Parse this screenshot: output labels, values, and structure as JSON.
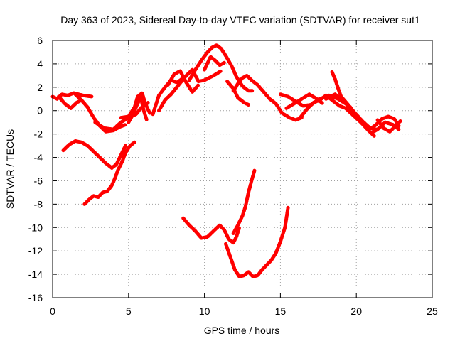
{
  "chart_data": {
    "type": "scatter",
    "title": "Day 363 of 2023, Sidereal Day-to-day VTEC variation (SDTVAR) for receiver sut1",
    "xlabel": "GPS time / hours",
    "ylabel": "SDTVAR / TECUs",
    "xlim": [
      0,
      25
    ],
    "ylim": [
      -16,
      6
    ],
    "xticks": [
      0,
      5,
      10,
      15,
      20,
      25
    ],
    "yticks": [
      -16,
      -14,
      -12,
      -10,
      -8,
      -6,
      -4,
      -2,
      0,
      2,
      4,
      6
    ],
    "grid": true,
    "marker": "+",
    "color": "#ff0000",
    "series": [
      {
        "name": "arc-1",
        "points": [
          [
            0,
            1.2
          ],
          [
            0.3,
            1.0
          ],
          [
            0.6,
            1.4
          ],
          [
            1.0,
            1.3
          ],
          [
            1.4,
            1.5
          ],
          [
            2.0,
            1.3
          ],
          [
            2.6,
            1.2
          ]
        ]
      },
      {
        "name": "arc-2",
        "points": [
          [
            0.4,
            1.2
          ],
          [
            0.8,
            0.6
          ],
          [
            1.2,
            0.2
          ],
          [
            1.6,
            0.7
          ],
          [
            1.9,
            0.9
          ]
        ]
      },
      {
        "name": "arc-3",
        "points": [
          [
            1.5,
            1.4
          ],
          [
            1.9,
            0.9
          ],
          [
            2.3,
            0.3
          ],
          [
            2.7,
            -0.6
          ],
          [
            3.1,
            -1.3
          ],
          [
            3.5,
            -1.8
          ],
          [
            4.0,
            -1.7
          ],
          [
            4.4,
            -1.4
          ],
          [
            4.8,
            -1.2
          ]
        ]
      },
      {
        "name": "arc-4",
        "points": [
          [
            2.8,
            -1.0
          ],
          [
            3.4,
            -1.5
          ],
          [
            4.0,
            -1.6
          ],
          [
            4.5,
            -1.0
          ],
          [
            5.0,
            -0.6
          ],
          [
            5.5,
            -0.3
          ],
          [
            5.8,
            0.2
          ],
          [
            6.3,
            0.7
          ]
        ]
      },
      {
        "name": "arc-5",
        "points": [
          [
            4.5,
            -0.6
          ],
          [
            5.0,
            -0.5
          ],
          [
            5.4,
            0.3
          ],
          [
            5.6,
            1.2
          ],
          [
            5.9,
            1.5
          ],
          [
            6.1,
            0.6
          ],
          [
            6.4,
            -0.2
          ]
        ]
      },
      {
        "name": "arc-6",
        "points": [
          [
            5.0,
            -1.0
          ],
          [
            5.3,
            -0.3
          ],
          [
            5.6,
            0.6
          ],
          [
            5.8,
            1.2
          ],
          [
            6.0,
            0.0
          ],
          [
            6.2,
            -0.8
          ]
        ]
      },
      {
        "name": "arc-7",
        "points": [
          [
            6.6,
            -0.3
          ],
          [
            7.0,
            1.3
          ],
          [
            7.4,
            2.0
          ],
          [
            7.8,
            2.6
          ],
          [
            8.2,
            2.4
          ],
          [
            8.6,
            2.8
          ]
        ]
      },
      {
        "name": "arc-8",
        "points": [
          [
            7.0,
            0.0
          ],
          [
            7.4,
            0.9
          ],
          [
            7.8,
            1.4
          ],
          [
            8.3,
            2.2
          ],
          [
            8.8,
            3.0
          ],
          [
            9.2,
            3.5
          ],
          [
            9.6,
            2.5
          ],
          [
            10.0,
            2.6
          ],
          [
            10.6,
            3.0
          ],
          [
            11.1,
            3.4
          ]
        ]
      },
      {
        "name": "arc-9",
        "points": [
          [
            7.6,
            2.2
          ],
          [
            8.0,
            3.1
          ],
          [
            8.4,
            3.4
          ],
          [
            8.8,
            2.4
          ],
          [
            9.2,
            1.6
          ],
          [
            9.6,
            2.2
          ]
        ]
      },
      {
        "name": "arc-10",
        "points": [
          [
            9.0,
            2.6
          ],
          [
            9.4,
            3.5
          ],
          [
            9.8,
            4.3
          ],
          [
            10.2,
            5.0
          ],
          [
            10.5,
            5.4
          ],
          [
            10.8,
            5.6
          ],
          [
            11.1,
            5.3
          ],
          [
            11.4,
            4.7
          ],
          [
            11.8,
            3.8
          ],
          [
            12.1,
            2.9
          ],
          [
            12.5,
            2.1
          ],
          [
            12.9,
            1.7
          ],
          [
            13.2,
            1.7
          ]
        ]
      },
      {
        "name": "arc-11",
        "points": [
          [
            10.0,
            3.5
          ],
          [
            10.4,
            4.6
          ],
          [
            10.7,
            4.3
          ],
          [
            11.0,
            3.9
          ],
          [
            11.3,
            4.1
          ]
        ]
      },
      {
        "name": "arc-12",
        "points": [
          [
            11.5,
            2.5
          ],
          [
            11.9,
            1.9
          ],
          [
            12.2,
            1.1
          ],
          [
            12.6,
            0.7
          ],
          [
            12.9,
            0.5
          ]
        ]
      },
      {
        "name": "arc-13",
        "points": [
          [
            11.9,
            1.7
          ],
          [
            12.2,
            2.3
          ],
          [
            12.5,
            2.8
          ],
          [
            12.8,
            3.0
          ],
          [
            13.1,
            2.6
          ],
          [
            13.5,
            2.2
          ],
          [
            13.9,
            1.6
          ],
          [
            14.3,
            1.0
          ],
          [
            14.7,
            0.6
          ],
          [
            15.1,
            -0.2
          ],
          [
            15.6,
            -0.6
          ],
          [
            16.0,
            -0.8
          ],
          [
            16.4,
            -0.6
          ]
        ]
      },
      {
        "name": "arc-14",
        "points": [
          [
            15.0,
            1.4
          ],
          [
            15.5,
            1.2
          ],
          [
            16.0,
            0.8
          ],
          [
            16.5,
            0.4
          ],
          [
            17.0,
            0.5
          ],
          [
            17.6,
            1.0
          ],
          [
            18.2,
            1.3
          ],
          [
            18.8,
            1.0
          ],
          [
            19.3,
            0.6
          ],
          [
            19.6,
            0.3
          ]
        ]
      },
      {
        "name": "arc-15",
        "points": [
          [
            15.4,
            0.2
          ],
          [
            15.9,
            0.6
          ],
          [
            16.4,
            1.0
          ],
          [
            16.9,
            1.4
          ],
          [
            17.4,
            1.0
          ],
          [
            17.8,
            0.6
          ]
        ]
      },
      {
        "name": "arc-16",
        "points": [
          [
            16.3,
            -0.6
          ],
          [
            16.8,
            0.2
          ],
          [
            17.2,
            0.7
          ],
          [
            17.6,
            0.9
          ],
          [
            18.0,
            1.3
          ],
          [
            18.5,
            0.8
          ],
          [
            18.9,
            0.4
          ],
          [
            19.3,
            0.2
          ],
          [
            19.8,
            -0.4
          ],
          [
            20.3,
            -1.0
          ],
          [
            20.8,
            -1.7
          ],
          [
            21.2,
            -2.2
          ]
        ]
      },
      {
        "name": "arc-17",
        "points": [
          [
            18.4,
            3.3
          ],
          [
            18.6,
            2.7
          ],
          [
            18.8,
            1.9
          ],
          [
            19.0,
            1.2
          ],
          [
            19.4,
            0.6
          ],
          [
            19.9,
            -0.2
          ],
          [
            20.4,
            -0.9
          ],
          [
            20.9,
            -1.5
          ],
          [
            21.3,
            -1.6
          ]
        ]
      },
      {
        "name": "arc-18",
        "points": [
          [
            18.0,
            1.0
          ],
          [
            18.6,
            1.4
          ],
          [
            19.2,
            0.8
          ],
          [
            19.7,
            0.0
          ],
          [
            20.2,
            -0.6
          ]
        ]
      },
      {
        "name": "arc-19",
        "points": [
          [
            20.5,
            -1.2
          ],
          [
            21.0,
            -1.5
          ],
          [
            21.3,
            -1.2
          ],
          [
            21.7,
            -0.7
          ],
          [
            22.1,
            -0.5
          ],
          [
            22.5,
            -0.7
          ],
          [
            22.8,
            -1.3
          ]
        ]
      },
      {
        "name": "arc-20",
        "points": [
          [
            21.0,
            -1.9
          ],
          [
            21.4,
            -1.6
          ],
          [
            21.9,
            -1.0
          ],
          [
            22.4,
            -1.2
          ],
          [
            22.8,
            -1.6
          ]
        ]
      },
      {
        "name": "arc-21",
        "points": [
          [
            21.4,
            -0.8
          ],
          [
            21.8,
            -1.5
          ],
          [
            22.2,
            -1.8
          ],
          [
            22.6,
            -1.3
          ],
          [
            22.9,
            -0.9
          ]
        ]
      },
      {
        "name": "arc-22",
        "points": [
          [
            0.7,
            -3.4
          ],
          [
            1.1,
            -2.9
          ],
          [
            1.5,
            -2.6
          ],
          [
            1.9,
            -2.7
          ],
          [
            2.3,
            -3.0
          ],
          [
            2.7,
            -3.5
          ],
          [
            3.1,
            -4.0
          ],
          [
            3.5,
            -4.5
          ],
          [
            3.9,
            -4.9
          ],
          [
            4.2,
            -4.6
          ],
          [
            4.5,
            -3.8
          ],
          [
            4.8,
            -3.0
          ]
        ]
      },
      {
        "name": "arc-23",
        "points": [
          [
            2.1,
            -8.0
          ],
          [
            2.4,
            -7.6
          ],
          [
            2.7,
            -7.3
          ],
          [
            3.0,
            -7.4
          ],
          [
            3.3,
            -7.0
          ],
          [
            3.6,
            -6.9
          ],
          [
            3.9,
            -6.4
          ],
          [
            4.1,
            -5.8
          ],
          [
            4.3,
            -5.1
          ],
          [
            4.6,
            -4.3
          ],
          [
            4.8,
            -3.6
          ],
          [
            5.1,
            -3.0
          ],
          [
            5.4,
            -2.7
          ]
        ]
      },
      {
        "name": "arc-24",
        "points": [
          [
            8.6,
            -9.2
          ],
          [
            9.0,
            -9.8
          ],
          [
            9.4,
            -10.3
          ],
          [
            9.8,
            -10.9
          ],
          [
            10.2,
            -10.8
          ],
          [
            10.6,
            -10.3
          ],
          [
            11.0,
            -9.8
          ],
          [
            11.3,
            -10.2
          ],
          [
            11.6,
            -11.0
          ],
          [
            11.9,
            -11.3
          ],
          [
            12.1,
            -10.8
          ],
          [
            12.3,
            -10.0
          ]
        ]
      },
      {
        "name": "arc-25",
        "points": [
          [
            11.4,
            -11.4
          ],
          [
            11.7,
            -12.5
          ],
          [
            12.0,
            -13.6
          ],
          [
            12.3,
            -14.2
          ],
          [
            12.6,
            -14.1
          ],
          [
            12.9,
            -13.8
          ],
          [
            13.2,
            -14.2
          ],
          [
            13.5,
            -14.1
          ],
          [
            13.8,
            -13.6
          ],
          [
            14.1,
            -13.2
          ],
          [
            14.4,
            -12.8
          ],
          [
            14.7,
            -12.2
          ],
          [
            15.0,
            -11.2
          ],
          [
            15.3,
            -10.0
          ],
          [
            15.5,
            -8.3
          ]
        ]
      },
      {
        "name": "arc-26",
        "points": [
          [
            11.9,
            -10.5
          ],
          [
            12.2,
            -9.8
          ],
          [
            12.5,
            -9.0
          ],
          [
            12.7,
            -8.2
          ],
          [
            12.9,
            -7.0
          ],
          [
            13.1,
            -6.0
          ],
          [
            13.3,
            -5.1
          ]
        ]
      }
    ]
  }
}
